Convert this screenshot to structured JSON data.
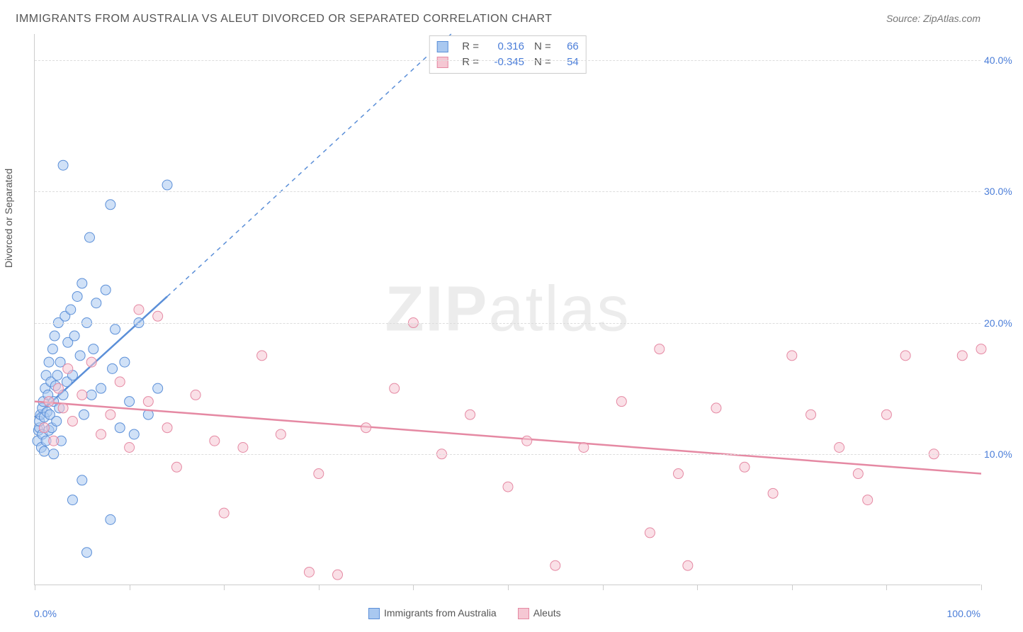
{
  "title": "IMMIGRANTS FROM AUSTRALIA VS ALEUT DIVORCED OR SEPARATED CORRELATION CHART",
  "source": "Source: ZipAtlas.com",
  "watermark_a": "ZIP",
  "watermark_b": "atlas",
  "chart": {
    "type": "scatter",
    "background_color": "#ffffff",
    "grid_color": "#dddddd",
    "axis_color": "#cccccc",
    "tick_label_color": "#4a7dd8",
    "text_color": "#555555",
    "xlim": [
      0,
      100
    ],
    "ylim": [
      0,
      42
    ],
    "y_gridlines": [
      10,
      20,
      30,
      40
    ],
    "y_tick_labels": [
      "10.0%",
      "20.0%",
      "30.0%",
      "40.0%"
    ],
    "x_ticks": [
      0,
      10,
      20,
      30,
      40,
      50,
      60,
      70,
      80,
      90,
      100
    ],
    "x_tick_labels": {
      "start": "0.0%",
      "end": "100.0%"
    },
    "y_axis_label": "Divorced or Separated",
    "marker_radius": 7,
    "marker_opacity": 0.55,
    "series": [
      {
        "id": "australia",
        "name": "Immigrants from Australia",
        "color_fill": "#a9c8f0",
        "color_stroke": "#5b8fd8",
        "r_value": "0.316",
        "n_value": "66",
        "trend_solid": {
          "x1": 0,
          "y1": 12.8,
          "x2": 14,
          "y2": 22.0
        },
        "trend_dashed": {
          "x1": 14,
          "y1": 22.0,
          "x2": 44,
          "y2": 42.0
        },
        "points": [
          [
            0.3,
            11.0
          ],
          [
            0.4,
            11.8
          ],
          [
            0.5,
            12.0
          ],
          [
            0.5,
            12.5
          ],
          [
            0.6,
            13.0
          ],
          [
            0.7,
            10.5
          ],
          [
            0.8,
            11.5
          ],
          [
            0.8,
            13.5
          ],
          [
            0.9,
            14.0
          ],
          [
            1.0,
            10.2
          ],
          [
            1.0,
            12.8
          ],
          [
            1.1,
            15.0
          ],
          [
            1.2,
            11.0
          ],
          [
            1.2,
            16.0
          ],
          [
            1.3,
            13.2
          ],
          [
            1.4,
            14.5
          ],
          [
            1.5,
            17.0
          ],
          [
            1.5,
            11.8
          ],
          [
            1.6,
            13.0
          ],
          [
            1.7,
            15.5
          ],
          [
            1.8,
            12.0
          ],
          [
            1.9,
            18.0
          ],
          [
            2.0,
            14.0
          ],
          [
            2.0,
            10.0
          ],
          [
            2.1,
            19.0
          ],
          [
            2.2,
            15.2
          ],
          [
            2.3,
            12.5
          ],
          [
            2.4,
            16.0
          ],
          [
            2.5,
            20.0
          ],
          [
            2.6,
            13.5
          ],
          [
            2.7,
            17.0
          ],
          [
            2.8,
            11.0
          ],
          [
            3.0,
            14.5
          ],
          [
            3.2,
            20.5
          ],
          [
            3.4,
            15.5
          ],
          [
            3.5,
            18.5
          ],
          [
            3.8,
            21.0
          ],
          [
            4.0,
            16.0
          ],
          [
            4.2,
            19.0
          ],
          [
            4.5,
            22.0
          ],
          [
            4.8,
            17.5
          ],
          [
            5.0,
            23.0
          ],
          [
            5.2,
            13.0
          ],
          [
            5.5,
            20.0
          ],
          [
            5.8,
            26.5
          ],
          [
            6.0,
            14.5
          ],
          [
            6.2,
            18.0
          ],
          [
            6.5,
            21.5
          ],
          [
            7.0,
            15.0
          ],
          [
            7.5,
            22.5
          ],
          [
            8.0,
            29.0
          ],
          [
            8.2,
            16.5
          ],
          [
            8.5,
            19.5
          ],
          [
            9.0,
            12.0
          ],
          [
            9.5,
            17.0
          ],
          [
            10.0,
            14.0
          ],
          [
            10.5,
            11.5
          ],
          [
            11.0,
            20.0
          ],
          [
            12.0,
            13.0
          ],
          [
            13.0,
            15.0
          ],
          [
            14.0,
            30.5
          ],
          [
            3.0,
            32.0
          ],
          [
            5.0,
            8.0
          ],
          [
            4.0,
            6.5
          ],
          [
            8.0,
            5.0
          ],
          [
            5.5,
            2.5
          ]
        ]
      },
      {
        "id": "aleuts",
        "name": "Aleuts",
        "color_fill": "#f5c7d3",
        "color_stroke": "#e589a3",
        "r_value": "-0.345",
        "n_value": "54",
        "trend_solid": {
          "x1": 0,
          "y1": 14.0,
          "x2": 100,
          "y2": 8.5
        },
        "trend_dashed": null,
        "points": [
          [
            1.0,
            12.0
          ],
          [
            1.5,
            14.0
          ],
          [
            2.0,
            11.0
          ],
          [
            2.5,
            15.0
          ],
          [
            3.0,
            13.5
          ],
          [
            3.5,
            16.5
          ],
          [
            4.0,
            12.5
          ],
          [
            5.0,
            14.5
          ],
          [
            6.0,
            17.0
          ],
          [
            7.0,
            11.5
          ],
          [
            8.0,
            13.0
          ],
          [
            9.0,
            15.5
          ],
          [
            10.0,
            10.5
          ],
          [
            11.0,
            21.0
          ],
          [
            12.0,
            14.0
          ],
          [
            13.0,
            20.5
          ],
          [
            14.0,
            12.0
          ],
          [
            15.0,
            9.0
          ],
          [
            17.0,
            14.5
          ],
          [
            19.0,
            11.0
          ],
          [
            20.0,
            5.5
          ],
          [
            22.0,
            10.5
          ],
          [
            24.0,
            17.5
          ],
          [
            26.0,
            11.5
          ],
          [
            29.0,
            1.0
          ],
          [
            30.0,
            8.5
          ],
          [
            32.0,
            0.8
          ],
          [
            35.0,
            12.0
          ],
          [
            38.0,
            15.0
          ],
          [
            40.0,
            20.0
          ],
          [
            43.0,
            10.0
          ],
          [
            46.0,
            13.0
          ],
          [
            50.0,
            7.5
          ],
          [
            52.0,
            11.0
          ],
          [
            55.0,
            1.5
          ],
          [
            58.0,
            10.5
          ],
          [
            62.0,
            14.0
          ],
          [
            65.0,
            4.0
          ],
          [
            66.0,
            18.0
          ],
          [
            68.0,
            8.5
          ],
          [
            69.0,
            1.5
          ],
          [
            72.0,
            13.5
          ],
          [
            75.0,
            9.0
          ],
          [
            78.0,
            7.0
          ],
          [
            80.0,
            17.5
          ],
          [
            82.0,
            13.0
          ],
          [
            85.0,
            10.5
          ],
          [
            87.0,
            8.5
          ],
          [
            88.0,
            6.5
          ],
          [
            90.0,
            13.0
          ],
          [
            92.0,
            17.5
          ],
          [
            95.0,
            10.0
          ],
          [
            98.0,
            17.5
          ],
          [
            100.0,
            18.0
          ]
        ]
      }
    ],
    "stats_box": {
      "r_label": "R =",
      "n_label": "N ="
    },
    "legend_bottom": [
      "Immigrants from Australia",
      "Aleuts"
    ]
  }
}
